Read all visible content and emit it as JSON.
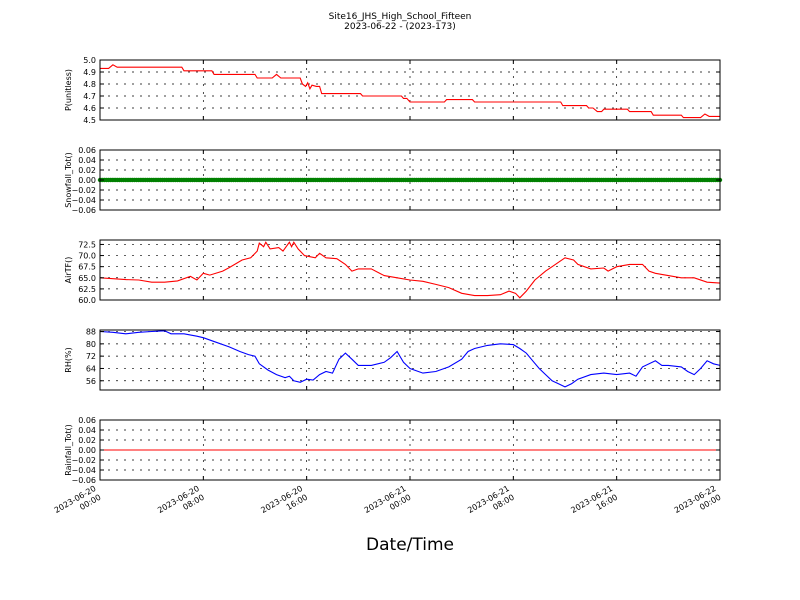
{
  "title": "Site16_JHS_High_School_Fifteen",
  "subtitle": "2023-06-22 - (2023-173)",
  "xlabel": "Date/Time",
  "x_ticks": [
    {
      "l1": "2023-06-20",
      "l2": "00:00",
      "h": 0
    },
    {
      "l1": "2023-06-20",
      "l2": "08:00",
      "h": 8
    },
    {
      "l1": "2023-06-20",
      "l2": "16:00",
      "h": 16
    },
    {
      "l1": "2023-06-21",
      "l2": "00:00",
      "h": 24
    },
    {
      "l1": "2023-06-21",
      "l2": "08:00",
      "h": 32
    },
    {
      "l1": "2023-06-21",
      "l2": "16:00",
      "h": 40
    },
    {
      "l1": "2023-06-22",
      "l2": "00:00",
      "h": 48
    }
  ],
  "chart_data": [
    {
      "type": "line",
      "ylabel": "P(unitless)",
      "ylim": [
        4.5,
        5.0
      ],
      "yticks": [
        "4.5",
        "4.6",
        "4.7",
        "4.8",
        "4.9",
        "5.0"
      ],
      "ytick_values": [
        4.5,
        4.6,
        4.7,
        4.8,
        4.9,
        5.0
      ],
      "xlim": [
        "2023-06-20 00:00",
        "2023-06-22 00:00"
      ],
      "grid": true,
      "color": "#ff0000",
      "points": [
        [
          "2023-06-20 00:00",
          4.93
        ],
        [
          "2023-06-20 00:40",
          4.93
        ],
        [
          "2023-06-20 01:00",
          4.96
        ],
        [
          "2023-06-20 01:20",
          4.94
        ],
        [
          "2023-06-20 06:20",
          4.94
        ],
        [
          "2023-06-20 06:30",
          4.91
        ],
        [
          "2023-06-20 08:40",
          4.91
        ],
        [
          "2023-06-20 08:50",
          4.88
        ],
        [
          "2023-06-20 12:00",
          4.88
        ],
        [
          "2023-06-20 12:10",
          4.85
        ],
        [
          "2023-06-20 13:20",
          4.85
        ],
        [
          "2023-06-20 13:40",
          4.88
        ],
        [
          "2023-06-20 14:00",
          4.85
        ],
        [
          "2023-06-20 15:30",
          4.85
        ],
        [
          "2023-06-20 15:40",
          4.8
        ],
        [
          "2023-06-20 15:55",
          4.78
        ],
        [
          "2023-06-20 16:05",
          4.81
        ],
        [
          "2023-06-20 16:15",
          4.76
        ],
        [
          "2023-06-20 16:25",
          4.79
        ],
        [
          "2023-06-20 16:45",
          4.78
        ],
        [
          "2023-06-20 17:00",
          4.78
        ],
        [
          "2023-06-20 17:10",
          4.72
        ],
        [
          "2023-06-20 20:10",
          4.72
        ],
        [
          "2023-06-20 20:20",
          4.7
        ],
        [
          "2023-06-20 23:20",
          4.7
        ],
        [
          "2023-06-20 23:30",
          4.68
        ],
        [
          "2023-06-20 23:45",
          4.68
        ],
        [
          "2023-06-21 00:00",
          4.65
        ],
        [
          "2023-06-21 02:40",
          4.65
        ],
        [
          "2023-06-21 02:50",
          4.67
        ],
        [
          "2023-06-21 04:50",
          4.67
        ],
        [
          "2023-06-21 05:00",
          4.65
        ],
        [
          "2023-06-21 11:40",
          4.65
        ],
        [
          "2023-06-21 11:50",
          4.62
        ],
        [
          "2023-06-21 13:40",
          4.62
        ],
        [
          "2023-06-21 13:50",
          4.6
        ],
        [
          "2023-06-21 14:10",
          4.6
        ],
        [
          "2023-06-21 14:30",
          4.57
        ],
        [
          "2023-06-21 14:50",
          4.57
        ],
        [
          "2023-06-21 15:00",
          4.59
        ],
        [
          "2023-06-21 16:50",
          4.59
        ],
        [
          "2023-06-21 17:00",
          4.57
        ],
        [
          "2023-06-21 18:40",
          4.57
        ],
        [
          "2023-06-21 18:50",
          4.54
        ],
        [
          "2023-06-21 21:00",
          4.54
        ],
        [
          "2023-06-21 21:10",
          4.52
        ],
        [
          "2023-06-21 22:30",
          4.52
        ],
        [
          "2023-06-21 22:50",
          4.55
        ],
        [
          "2023-06-21 23:10",
          4.53
        ],
        [
          "2023-06-22 00:00",
          4.53
        ]
      ]
    },
    {
      "type": "scatter",
      "ylabel": "Snowfall_Tot()",
      "ylim": [
        -0.06,
        0.06
      ],
      "yticks": [
        "0.06",
        "0.04",
        "0.02",
        "0.00",
        "−0.02",
        "−0.04",
        "−0.06"
      ],
      "ytick_values": [
        0.06,
        0.04,
        0.02,
        0.0,
        -0.02,
        -0.04,
        -0.06
      ],
      "xlim": [
        "2023-06-20 00:00",
        "2023-06-22 00:00"
      ],
      "grid": true,
      "color": "#008000",
      "description_value": 0.0,
      "sample_interval_minutes": 10
    },
    {
      "type": "line",
      "ylabel": "AirTF()",
      "ylim": [
        60.0,
        73.5
      ],
      "yticks": [
        "60.0",
        "62.5",
        "65.0",
        "67.5",
        "70.0",
        "72.5"
      ],
      "ytick_values": [
        60.0,
        62.5,
        65.0,
        67.5,
        70.0,
        72.5
      ],
      "xlim": [
        "2023-06-20 00:00",
        "2023-06-22 00:00"
      ],
      "grid": true,
      "color": "#ff0000",
      "points": [
        [
          "2023-06-20 00:00",
          65.0
        ],
        [
          "2023-06-20 01:00",
          64.8
        ],
        [
          "2023-06-20 02:00",
          64.6
        ],
        [
          "2023-06-20 03:00",
          64.5
        ],
        [
          "2023-06-20 04:00",
          64.0
        ],
        [
          "2023-06-20 05:00",
          64.0
        ],
        [
          "2023-06-20 06:00",
          64.3
        ],
        [
          "2023-06-20 07:00",
          65.3
        ],
        [
          "2023-06-20 07:30",
          64.5
        ],
        [
          "2023-06-20 08:00",
          66.0
        ],
        [
          "2023-06-20 08:30",
          65.6
        ],
        [
          "2023-06-20 09:30",
          66.5
        ],
        [
          "2023-06-20 10:00",
          67.3
        ],
        [
          "2023-06-20 11:00",
          69.0
        ],
        [
          "2023-06-20 11:40",
          69.5
        ],
        [
          "2023-06-20 12:10",
          71.0
        ],
        [
          "2023-06-20 12:20",
          72.8
        ],
        [
          "2023-06-20 12:40",
          72.0
        ],
        [
          "2023-06-20 12:50",
          73.0
        ],
        [
          "2023-06-20 13:10",
          71.5
        ],
        [
          "2023-06-20 13:50",
          71.8
        ],
        [
          "2023-06-20 14:10",
          71.0
        ],
        [
          "2023-06-20 14:40",
          73.0
        ],
        [
          "2023-06-20 14:50",
          72.0
        ],
        [
          "2023-06-20 15:00",
          73.0
        ],
        [
          "2023-06-20 15:20",
          71.5
        ],
        [
          "2023-06-20 15:50",
          70.0
        ],
        [
          "2023-06-20 16:40",
          69.5
        ],
        [
          "2023-06-20 17:00",
          70.5
        ],
        [
          "2023-06-20 17:30",
          69.5
        ],
        [
          "2023-06-20 18:20",
          69.3
        ],
        [
          "2023-06-20 19:00",
          68.0
        ],
        [
          "2023-06-20 19:30",
          66.5
        ],
        [
          "2023-06-20 20:00",
          67.0
        ],
        [
          "2023-06-20 21:00",
          67.0
        ],
        [
          "2023-06-20 22:00",
          65.5
        ],
        [
          "2023-06-20 23:00",
          65.0
        ],
        [
          "2023-06-21 00:00",
          64.5
        ],
        [
          "2023-06-21 01:00",
          64.2
        ],
        [
          "2023-06-21 02:00",
          63.5
        ],
        [
          "2023-06-21 03:00",
          62.8
        ],
        [
          "2023-06-21 04:00",
          61.5
        ],
        [
          "2023-06-21 05:00",
          61.0
        ],
        [
          "2023-06-21 06:00",
          61.0
        ],
        [
          "2023-06-21 07:00",
          61.2
        ],
        [
          "2023-06-21 07:40",
          62.0
        ],
        [
          "2023-06-21 08:10",
          61.5
        ],
        [
          "2023-06-21 08:30",
          60.5
        ],
        [
          "2023-06-21 09:00",
          62.0
        ],
        [
          "2023-06-21 09:40",
          64.5
        ],
        [
          "2023-06-21 10:30",
          66.5
        ],
        [
          "2023-06-21 11:00",
          67.5
        ],
        [
          "2023-06-21 12:00",
          69.5
        ],
        [
          "2023-06-21 12:40",
          69.0
        ],
        [
          "2023-06-21 13:00",
          68.0
        ],
        [
          "2023-06-21 14:00",
          67.0
        ],
        [
          "2023-06-21 15:00",
          67.2
        ],
        [
          "2023-06-21 15:20",
          66.5
        ],
        [
          "2023-06-21 16:00",
          67.5
        ],
        [
          "2023-06-21 17:00",
          68.0
        ],
        [
          "2023-06-21 18:00",
          68.0
        ],
        [
          "2023-06-21 18:30",
          66.5
        ],
        [
          "2023-06-21 19:00",
          66.0
        ],
        [
          "2023-06-21 20:00",
          65.5
        ],
        [
          "2023-06-21 21:00",
          65.0
        ],
        [
          "2023-06-21 22:00",
          65.0
        ],
        [
          "2023-06-21 23:00",
          64.0
        ],
        [
          "2023-06-22 00:00",
          63.8
        ]
      ]
    },
    {
      "type": "line",
      "ylabel": "RH(%)",
      "ylim": [
        50,
        89
      ],
      "yticks": [
        "56",
        "64",
        "72",
        "80",
        "88"
      ],
      "ytick_values": [
        56,
        64,
        72,
        80,
        88
      ],
      "xlim": [
        "2023-06-20 00:00",
        "2023-06-22 00:00"
      ],
      "grid": true,
      "color": "#0000ff",
      "points": [
        [
          "2023-06-20 00:00",
          88
        ],
        [
          "2023-06-20 01:00",
          87.5
        ],
        [
          "2023-06-20 02:00",
          86.5
        ],
        [
          "2023-06-20 03:00",
          87.5
        ],
        [
          "2023-06-20 04:00",
          88
        ],
        [
          "2023-06-20 05:00",
          88.5
        ],
        [
          "2023-06-20 05:30",
          86.5
        ],
        [
          "2023-06-20 06:30",
          86.5
        ],
        [
          "2023-06-20 07:30",
          85
        ],
        [
          "2023-06-20 08:00",
          84
        ],
        [
          "2023-06-20 09:00",
          81
        ],
        [
          "2023-06-20 10:00",
          78
        ],
        [
          "2023-06-20 10:50",
          75
        ],
        [
          "2023-06-20 11:30",
          73
        ],
        [
          "2023-06-20 12:00",
          72
        ],
        [
          "2023-06-20 12:20",
          67
        ],
        [
          "2023-06-20 13:00",
          63
        ],
        [
          "2023-06-20 13:40",
          60
        ],
        [
          "2023-06-20 14:20",
          58
        ],
        [
          "2023-06-20 14:40",
          59
        ],
        [
          "2023-06-20 15:00",
          56
        ],
        [
          "2023-06-20 15:30",
          55
        ],
        [
          "2023-06-20 16:00",
          57
        ],
        [
          "2023-06-20 16:30",
          56.5
        ],
        [
          "2023-06-20 17:00",
          60
        ],
        [
          "2023-06-20 17:30",
          62
        ],
        [
          "2023-06-20 18:00",
          61
        ],
        [
          "2023-06-20 18:30",
          70
        ],
        [
          "2023-06-20 19:00",
          74
        ],
        [
          "2023-06-20 19:30",
          70
        ],
        [
          "2023-06-20 20:00",
          66
        ],
        [
          "2023-06-20 21:00",
          66
        ],
        [
          "2023-06-20 22:00",
          68
        ],
        [
          "2023-06-20 22:30",
          71
        ],
        [
          "2023-06-20 23:00",
          75
        ],
        [
          "2023-06-20 23:30",
          68
        ],
        [
          "2023-06-21 00:00",
          64
        ],
        [
          "2023-06-21 01:00",
          61
        ],
        [
          "2023-06-21 02:00",
          62
        ],
        [
          "2023-06-21 03:00",
          65
        ],
        [
          "2023-06-21 04:00",
          70
        ],
        [
          "2023-06-21 04:30",
          75
        ],
        [
          "2023-06-21 05:00",
          77
        ],
        [
          "2023-06-21 06:00",
          79
        ],
        [
          "2023-06-21 07:00",
          80
        ],
        [
          "2023-06-21 08:00",
          79.5
        ],
        [
          "2023-06-21 08:30",
          77
        ],
        [
          "2023-06-21 09:00",
          74
        ],
        [
          "2023-06-21 09:30",
          69
        ],
        [
          "2023-06-21 10:00",
          64
        ],
        [
          "2023-06-21 10:30",
          60
        ],
        [
          "2023-06-21 11:00",
          56
        ],
        [
          "2023-06-21 11:30",
          54
        ],
        [
          "2023-06-21 12:00",
          52
        ],
        [
          "2023-06-21 12:30",
          54
        ],
        [
          "2023-06-21 13:00",
          57
        ],
        [
          "2023-06-21 14:00",
          60
        ],
        [
          "2023-06-21 15:00",
          61
        ],
        [
          "2023-06-21 16:00",
          60
        ],
        [
          "2023-06-21 17:00",
          61
        ],
        [
          "2023-06-21 17:30",
          59
        ],
        [
          "2023-06-21 18:00",
          65
        ],
        [
          "2023-06-21 19:00",
          69
        ],
        [
          "2023-06-21 19:30",
          66
        ],
        [
          "2023-06-21 20:00",
          66
        ],
        [
          "2023-06-21 21:00",
          65
        ],
        [
          "2023-06-21 21:30",
          62
        ],
        [
          "2023-06-21 22:00",
          60
        ],
        [
          "2023-06-21 22:30",
          64
        ],
        [
          "2023-06-21 23:00",
          69
        ],
        [
          "2023-06-21 23:30",
          67
        ],
        [
          "2023-06-22 00:00",
          66
        ]
      ]
    },
    {
      "type": "line",
      "ylabel": "Rainfall_Tot()",
      "ylim": [
        -0.06,
        0.06
      ],
      "yticks": [
        "0.06",
        "0.04",
        "0.02",
        "0.00",
        "−0.02",
        "−0.04",
        "−0.06"
      ],
      "ytick_values": [
        0.06,
        0.04,
        0.02,
        0.0,
        -0.02,
        -0.04,
        -0.06
      ],
      "xlim": [
        "2023-06-20 00:00",
        "2023-06-22 00:00"
      ],
      "grid": true,
      "color": "#ff0000",
      "points": [
        [
          "2023-06-20 00:00",
          0.0
        ],
        [
          "2023-06-22 00:00",
          0.0
        ]
      ]
    }
  ]
}
